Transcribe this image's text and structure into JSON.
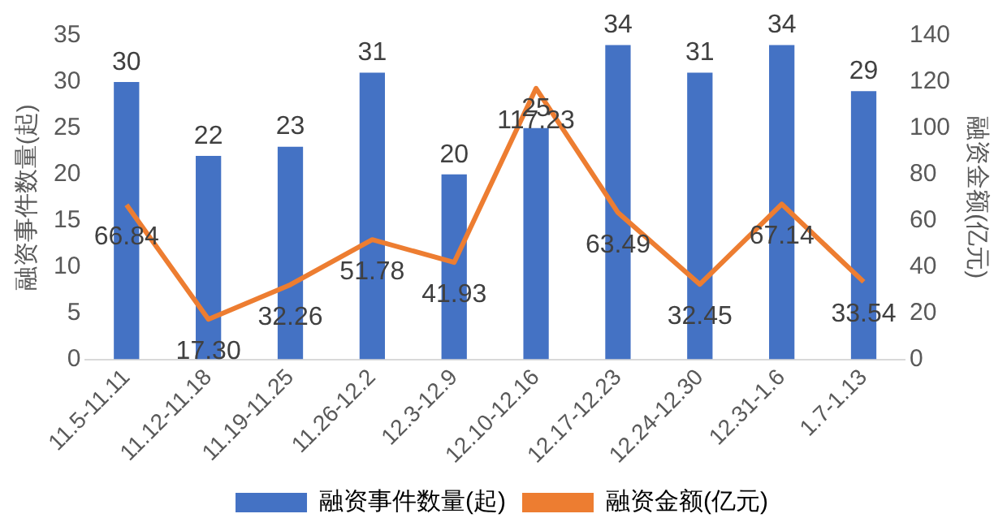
{
  "chart_data": {
    "type": "bar",
    "ylabel": "融资事件数量(起)",
    "y2label": "融资金额(亿元)",
    "categories": [
      "11.5-11.11",
      "11.12-11.18",
      "11.19-11.25",
      "11.26-12.2",
      "12.3-12.9",
      "12.10-12.16",
      "12.17-12.23",
      "12.24-12.30",
      "12.31-1.6",
      "1.7-1.13"
    ],
    "series": [
      {
        "name": "融资事件数量(起)",
        "color": "#4472c4",
        "values": [
          30,
          22,
          23,
          31,
          20,
          25,
          34,
          31,
          34,
          29
        ],
        "value_labels": [
          "30",
          "22",
          "23",
          "31",
          "20",
          "25",
          "34",
          "31",
          "34",
          "29"
        ]
      },
      {
        "name": "融资金额(亿元)",
        "type": "line",
        "axis": "y2",
        "color": "#ed7d31",
        "values": [
          66.84,
          17.3,
          32.26,
          51.78,
          41.93,
          117.23,
          63.49,
          32.45,
          67.14,
          33.54
        ],
        "value_labels": [
          "66.84",
          "17.30",
          "32.26",
          "51.78",
          "41.93",
          "117.23",
          "63.49",
          "32.45",
          "67.14",
          "33.54"
        ]
      }
    ],
    "ylim": [
      0,
      35
    ],
    "yticks": [
      0,
      5,
      10,
      15,
      20,
      25,
      30,
      35
    ],
    "y2lim": [
      0,
      140
    ],
    "y2ticks": [
      0,
      20,
      40,
      60,
      80,
      100,
      120,
      140
    ],
    "grid": false,
    "legend": "bottom",
    "marker": "none"
  }
}
